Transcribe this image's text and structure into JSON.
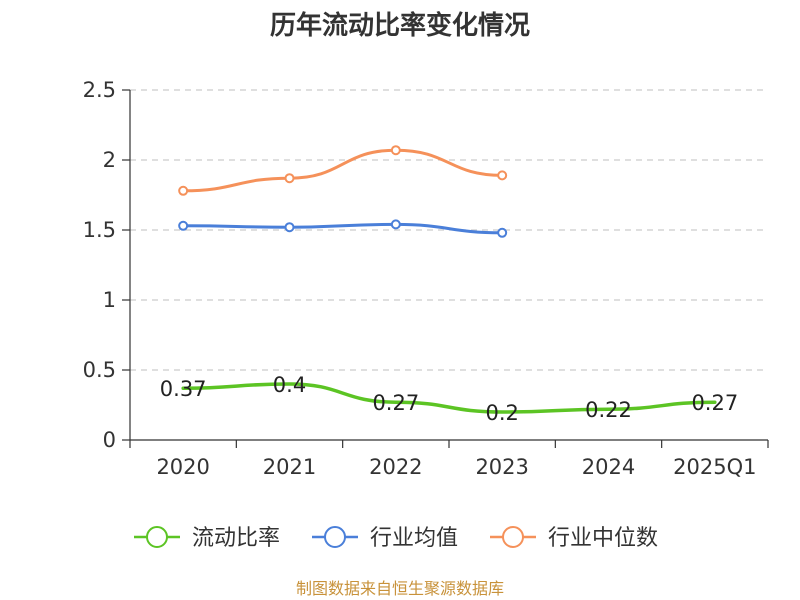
{
  "chart_data": {
    "type": "line",
    "title": "历年流动比率变化情况",
    "xlabel": "",
    "ylabel": "",
    "categories": [
      "2020",
      "2021",
      "2022",
      "2023",
      "2024",
      "2025Q1"
    ],
    "ylim": [
      0,
      2.5
    ],
    "yticks": [
      0,
      0.5,
      1,
      1.5,
      2,
      2.5
    ],
    "ytick_labels": [
      "0",
      "0.5",
      "1",
      "1.5",
      "2",
      "2.5"
    ],
    "grid": true,
    "legend_position": "bottom",
    "series": [
      {
        "name": "流动比率",
        "color": "#5cc424",
        "values": [
          0.37,
          0.4,
          0.27,
          0.2,
          0.22,
          0.27
        ],
        "labels": [
          "0.37",
          "0.4",
          "0.27",
          "0.2",
          "0.22",
          "0.27"
        ],
        "show_markers": false,
        "show_labels": true
      },
      {
        "name": "行业均值",
        "color": "#4a7fd9",
        "values": [
          1.53,
          1.52,
          1.54,
          1.48,
          null,
          null
        ],
        "show_markers": true,
        "show_labels": false
      },
      {
        "name": "行业中位数",
        "color": "#f5915a",
        "values": [
          1.78,
          1.87,
          2.07,
          1.89,
          null,
          null
        ],
        "show_markers": true,
        "show_labels": false
      }
    ]
  },
  "source_text": "制图数据来自恒生聚源数据库"
}
